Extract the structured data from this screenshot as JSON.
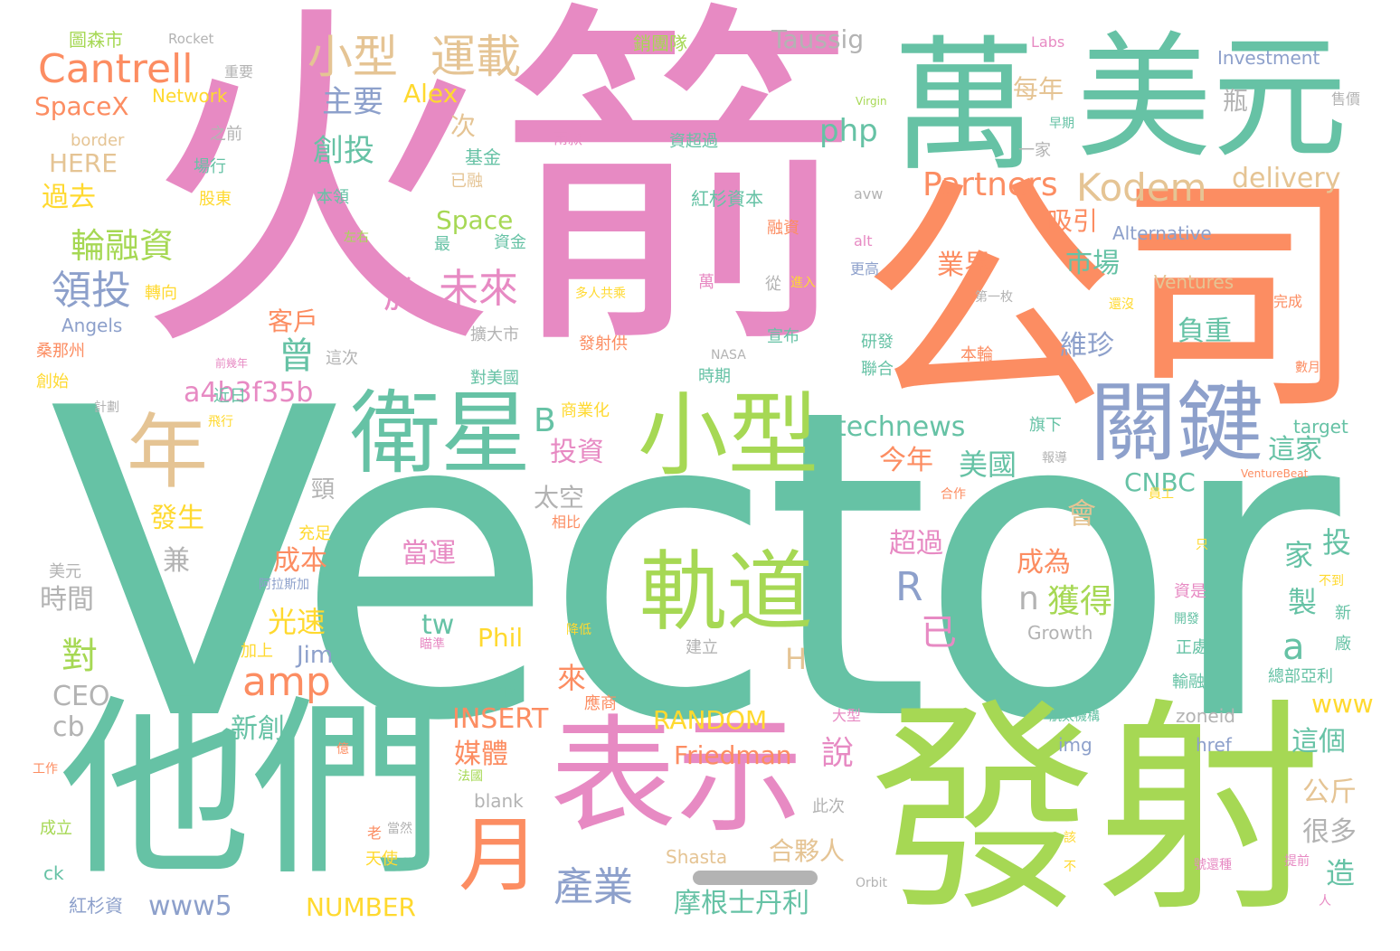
{
  "palette": {
    "teal": "#66c2a5",
    "orange": "#fc8d62",
    "blue": "#8da0cb",
    "pink": "#e78ac3",
    "green": "#a6d854",
    "yellow": "#ffd92f",
    "tan": "#e5c494",
    "grey": "#b3b3b3"
  },
  "words": [
    {
      "text": "Vector",
      "color": "teal"
    },
    {
      "text": "火箭",
      "color": "pink"
    },
    {
      "text": "公司",
      "color": "orange"
    },
    {
      "text": "發射",
      "color": "green"
    },
    {
      "text": "他們",
      "color": "teal"
    },
    {
      "text": "萬",
      "color": "teal"
    },
    {
      "text": "美元",
      "color": "teal"
    },
    {
      "text": "表示",
      "color": "pink"
    },
    {
      "text": "小型",
      "color": "green"
    },
    {
      "text": "衛星",
      "color": "teal"
    },
    {
      "text": "軌道",
      "color": "green"
    },
    {
      "text": "關鍵",
      "color": "blue"
    },
    {
      "text": "年",
      "color": "tan"
    },
    {
      "text": "月",
      "color": "orange"
    },
    {
      "text": "Cantrell",
      "color": "orange"
    },
    {
      "text": "小型",
      "color": "tan"
    },
    {
      "text": "運載",
      "color": "tan"
    },
    {
      "text": "Kodem",
      "color": "tan"
    },
    {
      "text": "Partners",
      "color": "orange"
    },
    {
      "text": "delivery",
      "color": "tan"
    },
    {
      "text": "Taussig",
      "color": "grey"
    },
    {
      "text": "amp",
      "color": "orange"
    },
    {
      "text": "產業",
      "color": "blue"
    },
    {
      "text": "領投",
      "color": "blue"
    },
    {
      "text": "輪融資",
      "color": "green"
    },
    {
      "text": "未來",
      "color": "pink"
    },
    {
      "text": "於",
      "color": "pink"
    },
    {
      "text": "曾",
      "color": "teal"
    },
    {
      "text": "SpaceX",
      "color": "orange"
    },
    {
      "text": "主要",
      "color": "blue"
    },
    {
      "text": "Alex",
      "color": "yellow"
    },
    {
      "text": "創投",
      "color": "teal"
    },
    {
      "text": "php",
      "color": "teal"
    },
    {
      "text": "每年",
      "color": "tan"
    },
    {
      "text": "technews",
      "color": "teal"
    },
    {
      "text": "a4b3f35b",
      "color": "pink"
    },
    {
      "text": "INSERT",
      "color": "orange"
    },
    {
      "text": "RANDOM",
      "color": "yellow"
    },
    {
      "text": "NUMBER",
      "color": "yellow"
    },
    {
      "text": "www5",
      "color": "blue"
    },
    {
      "text": "www",
      "color": "yellow"
    },
    {
      "text": "CNBC",
      "color": "teal"
    },
    {
      "text": "Friedman",
      "color": "orange"
    },
    {
      "text": "摩根士丹利",
      "color": "teal"
    },
    {
      "text": "合夥人",
      "color": "tan"
    },
    {
      "text": "Space",
      "color": "green"
    },
    {
      "text": "HERE",
      "color": "tan"
    },
    {
      "text": "過去",
      "color": "yellow"
    },
    {
      "text": "對",
      "color": "green"
    },
    {
      "text": "光速",
      "color": "yellow"
    },
    {
      "text": "成本",
      "color": "orange"
    },
    {
      "text": "時間",
      "color": "grey"
    },
    {
      "text": "CEO",
      "color": "grey"
    },
    {
      "text": "cb",
      "color": "grey"
    },
    {
      "text": "新創",
      "color": "teal"
    },
    {
      "text": "媒體",
      "color": "orange"
    },
    {
      "text": "說",
      "color": "pink"
    },
    {
      "text": "獲得",
      "color": "green"
    },
    {
      "text": "成為",
      "color": "orange"
    },
    {
      "text": "維珍",
      "color": "blue"
    },
    {
      "text": "市場",
      "color": "teal"
    },
    {
      "text": "業界",
      "color": "orange"
    },
    {
      "text": "吸引",
      "color": "orange"
    },
    {
      "text": "負重",
      "color": "teal"
    },
    {
      "text": "這家",
      "color": "teal"
    },
    {
      "text": "美國",
      "color": "teal"
    },
    {
      "text": "今年",
      "color": "orange"
    },
    {
      "text": "投資",
      "color": "pink"
    },
    {
      "text": "太空",
      "color": "grey"
    },
    {
      "text": "發生",
      "color": "yellow"
    },
    {
      "text": "超過",
      "color": "pink"
    },
    {
      "text": "當運",
      "color": "pink"
    },
    {
      "text": "這個",
      "color": "teal"
    },
    {
      "text": "公斤",
      "color": "tan"
    },
    {
      "text": "很多",
      "color": "grey"
    },
    {
      "text": "客戶",
      "color": "orange"
    },
    {
      "text": "Jim",
      "color": "blue"
    },
    {
      "text": "Phil",
      "color": "yellow"
    },
    {
      "text": "tw",
      "color": "teal"
    },
    {
      "text": "a",
      "color": "teal"
    },
    {
      "text": "R",
      "color": "blue"
    },
    {
      "text": "B",
      "color": "teal"
    },
    {
      "text": "n",
      "color": "grey"
    },
    {
      "text": "H",
      "color": "tan"
    },
    {
      "text": "已",
      "color": "pink"
    },
    {
      "text": "來",
      "color": "orange"
    },
    {
      "text": "會",
      "color": "tan"
    },
    {
      "text": "投",
      "color": "teal"
    },
    {
      "text": "製",
      "color": "teal"
    },
    {
      "text": "家",
      "color": "teal"
    },
    {
      "text": "造",
      "color": "teal"
    },
    {
      "text": "兼",
      "color": "grey"
    },
    {
      "text": "頸",
      "color": "grey"
    },
    {
      "text": "次",
      "color": "tan"
    },
    {
      "text": "瓶",
      "color": "grey"
    },
    {
      "text": "Investment",
      "color": "blue"
    },
    {
      "text": "Network",
      "color": "yellow"
    },
    {
      "text": "Rocket",
      "color": "grey"
    },
    {
      "text": "圖森市",
      "color": "green"
    },
    {
      "text": "Labs",
      "color": "pink"
    },
    {
      "text": "銷團隊",
      "color": "green"
    },
    {
      "text": "Alternative",
      "color": "blue"
    },
    {
      "text": "Ventures",
      "color": "tan"
    },
    {
      "text": "Angels",
      "color": "blue"
    },
    {
      "text": "Growth",
      "color": "grey"
    },
    {
      "text": "target",
      "color": "teal"
    },
    {
      "text": "zoneid",
      "color": "grey"
    },
    {
      "text": "href",
      "color": "blue"
    },
    {
      "text": "img",
      "color": "blue"
    },
    {
      "text": "blank",
      "color": "grey"
    },
    {
      "text": "src",
      "color": "teal"
    },
    {
      "text": "ck",
      "color": "teal"
    },
    {
      "text": "Shasta",
      "color": "tan"
    },
    {
      "text": "border",
      "color": "tan"
    },
    {
      "text": "avw",
      "color": "grey"
    },
    {
      "text": "alt",
      "color": "pink"
    },
    {
      "text": "NASA",
      "color": "grey"
    },
    {
      "text": "Orbit",
      "color": "grey"
    },
    {
      "text": "VentureBeat",
      "color": "orange"
    },
    {
      "text": "Virgin",
      "color": "green"
    },
    {
      "text": "紅杉資本",
      "color": "teal"
    },
    {
      "text": "紅杉資",
      "color": "blue"
    },
    {
      "text": "基金",
      "color": "teal"
    },
    {
      "text": "已融",
      "color": "tan"
    },
    {
      "text": "資超過",
      "color": "teal"
    },
    {
      "text": "兩款",
      "color": "pink"
    },
    {
      "text": "融資",
      "color": "orange"
    },
    {
      "text": "資金",
      "color": "teal"
    },
    {
      "text": "最",
      "color": "teal"
    },
    {
      "text": "擴大市",
      "color": "grey"
    },
    {
      "text": "對美國",
      "color": "teal"
    },
    {
      "text": "發射供",
      "color": "orange"
    },
    {
      "text": "多人共乘",
      "color": "yellow"
    },
    {
      "text": "商業化",
      "color": "yellow"
    },
    {
      "text": "宣布",
      "color": "teal"
    },
    {
      "text": "時期",
      "color": "teal"
    },
    {
      "text": "研發",
      "color": "teal"
    },
    {
      "text": "聯合",
      "color": "teal"
    },
    {
      "text": "本輪",
      "color": "orange"
    },
    {
      "text": "第一枚",
      "color": "grey"
    },
    {
      "text": "從",
      "color": "grey"
    },
    {
      "text": "更高",
      "color": "blue"
    },
    {
      "text": "萬",
      "color": "pink"
    },
    {
      "text": "進入",
      "color": "yellow"
    },
    {
      "text": "一家",
      "color": "grey"
    },
    {
      "text": "早期",
      "color": "teal"
    },
    {
      "text": "售價",
      "color": "grey"
    },
    {
      "text": "完成",
      "color": "orange"
    },
    {
      "text": "還沒",
      "color": "yellow"
    },
    {
      "text": "數月",
      "color": "orange"
    },
    {
      "text": "旗下",
      "color": "teal"
    },
    {
      "text": "報導",
      "color": "grey"
    },
    {
      "text": "合作",
      "color": "orange"
    },
    {
      "text": "相比",
      "color": "orange"
    },
    {
      "text": "員工",
      "color": "yellow"
    },
    {
      "text": "只",
      "color": "yellow"
    },
    {
      "text": "不到",
      "color": "yellow"
    },
    {
      "text": "新",
      "color": "teal"
    },
    {
      "text": "廠",
      "color": "teal"
    },
    {
      "text": "資是",
      "color": "pink"
    },
    {
      "text": "開發",
      "color": "teal"
    },
    {
      "text": "正處",
      "color": "teal"
    },
    {
      "text": "輸融",
      "color": "teal"
    },
    {
      "text": "總部亞利",
      "color": "teal"
    },
    {
      "text": "航太機構",
      "color": "teal"
    },
    {
      "text": "該",
      "color": "yellow"
    },
    {
      "text": "不",
      "color": "yellow"
    },
    {
      "text": "號還種",
      "color": "pink"
    },
    {
      "text": "提前",
      "color": "pink"
    },
    {
      "text": "人",
      "color": "pink"
    },
    {
      "text": "應商",
      "color": "orange"
    },
    {
      "text": "降低",
      "color": "yellow"
    },
    {
      "text": "建立",
      "color": "grey"
    },
    {
      "text": "瞄準",
      "color": "pink"
    },
    {
      "text": "此次",
      "color": "grey"
    },
    {
      "text": "當然",
      "color": "grey"
    },
    {
      "text": "老",
      "color": "orange"
    },
    {
      "text": "天使",
      "color": "yellow"
    },
    {
      "text": "大型",
      "color": "pink"
    },
    {
      "text": "億",
      "color": "orange"
    },
    {
      "text": "法國",
      "color": "green"
    },
    {
      "text": "充足",
      "color": "yellow"
    },
    {
      "text": "加上",
      "color": "yellow"
    },
    {
      "text": "阿拉斯加",
      "color": "blue"
    },
    {
      "text": "美元",
      "color": "grey"
    },
    {
      "text": "工作",
      "color": "orange"
    },
    {
      "text": "成立",
      "color": "green"
    },
    {
      "text": "創始",
      "color": "yellow"
    },
    {
      "text": "桑那州",
      "color": "orange"
    },
    {
      "text": "轉向",
      "color": "yellow"
    },
    {
      "text": "計劃",
      "color": "grey"
    },
    {
      "text": "前幾年",
      "color": "pink"
    },
    {
      "text": "這次",
      "color": "grey"
    },
    {
      "text": "近日",
      "color": "teal"
    },
    {
      "text": "飛行",
      "color": "yellow"
    },
    {
      "text": "左右",
      "color": "green"
    },
    {
      "text": "本領",
      "color": "teal"
    },
    {
      "text": "股東",
      "color": "yellow"
    },
    {
      "text": "場行",
      "color": "teal"
    },
    {
      "text": "之前",
      "color": "grey"
    },
    {
      "text": "重要",
      "color": "grey"
    }
  ]
}
